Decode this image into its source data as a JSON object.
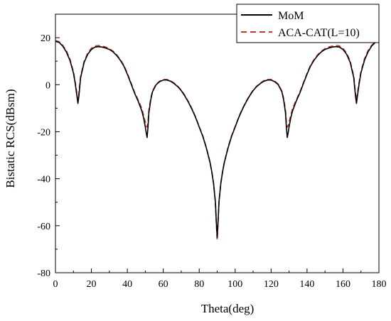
{
  "chart_data": {
    "type": "line",
    "xlabel": "Theta(deg)",
    "ylabel": "Bistatic RCS(dBsm)",
    "xlim": [
      0,
      180
    ],
    "ylim": [
      -80,
      30
    ],
    "xticks": [
      0,
      20,
      40,
      60,
      80,
      100,
      120,
      140,
      160,
      180
    ],
    "yticks": [
      -80,
      -60,
      -40,
      -20,
      0,
      20
    ],
    "grid": false,
    "legend_position": "top-right",
    "series": [
      {
        "name": "MoM",
        "color": "#000000",
        "style": "solid",
        "x": [
          0,
          2,
          4,
          6,
          8,
          10,
          11,
          12,
          12.5,
          13,
          14,
          16,
          18,
          20,
          22,
          24,
          26,
          28,
          30,
          32,
          34,
          36,
          38,
          40,
          42,
          44,
          46,
          48,
          49,
          50,
          50.5,
          51,
          51.5,
          52,
          53,
          54,
          56,
          58,
          60,
          62,
          64,
          66,
          68,
          70,
          72,
          74,
          76,
          78,
          80,
          82,
          84,
          86,
          87,
          88,
          89,
          89.5,
          90,
          90.5,
          91,
          92,
          93,
          94,
          96,
          98,
          100,
          102,
          104,
          106,
          108,
          110,
          112,
          114,
          116,
          118,
          120,
          122,
          124,
          126,
          127,
          128,
          128.5,
          129,
          129.5,
          130,
          131,
          132,
          134,
          136,
          138,
          140,
          142,
          144,
          146,
          148,
          150,
          152,
          154,
          156,
          158,
          160,
          162,
          164,
          166,
          167,
          167.5,
          168,
          169,
          170,
          172,
          174,
          176,
          178,
          180
        ],
        "y": [
          18.5,
          18,
          16.5,
          14,
          10.5,
          5,
          0.5,
          -5,
          -8,
          -5,
          3,
          9.5,
          13,
          15,
          16,
          16.2,
          16,
          15.6,
          15,
          14,
          12.5,
          10.5,
          8,
          4.5,
          0.5,
          -3.5,
          -7,
          -11,
          -14,
          -18,
          -20.5,
          -22.5,
          -18,
          -12,
          -6.5,
          -3,
          0,
          1.3,
          2,
          2,
          1.5,
          0.5,
          -0.8,
          -2.5,
          -4.8,
          -7.5,
          -10.5,
          -14,
          -18,
          -22,
          -27,
          -33,
          -37,
          -42,
          -50,
          -58,
          -65,
          -58,
          -50,
          -42,
          -37,
          -33,
          -27,
          -22,
          -18,
          -14,
          -10.5,
          -7.5,
          -4.8,
          -2.5,
          -0.8,
          0.5,
          1.5,
          2,
          2,
          1.3,
          0,
          -3,
          -6.5,
          -12,
          -18,
          -22.5,
          -20.5,
          -18,
          -14,
          -11,
          -7,
          -3.5,
          0.5,
          4.5,
          8,
          10.5,
          12.5,
          14,
          15,
          15.6,
          16,
          16.2,
          16,
          15,
          13,
          9.5,
          3,
          -5,
          -8,
          -5,
          0.5,
          5,
          10.5,
          14,
          16.5,
          18,
          18.5
        ]
      },
      {
        "name": "ACA-CAT(L=10)",
        "color": "#c0392b",
        "style": "dashed",
        "x": [
          0,
          2,
          4,
          6,
          8,
          10,
          11,
          12,
          12.5,
          13,
          14,
          16,
          18,
          20,
          22,
          24,
          26,
          28,
          30,
          32,
          34,
          36,
          38,
          40,
          42,
          44,
          46,
          48,
          49,
          50,
          50.5,
          51,
          51.5,
          52,
          53,
          54,
          56,
          58,
          60,
          62,
          64,
          66,
          68,
          70,
          72,
          74,
          76,
          78,
          80,
          82,
          84,
          86,
          87,
          88,
          89,
          89.5,
          90,
          90.5,
          91,
          92,
          93,
          94,
          96,
          98,
          100,
          102,
          104,
          106,
          108,
          110,
          112,
          114,
          116,
          118,
          120,
          122,
          124,
          126,
          127,
          128,
          128.5,
          129,
          129.5,
          130,
          131,
          132,
          134,
          136,
          138,
          140,
          142,
          144,
          146,
          148,
          150,
          152,
          154,
          156,
          158,
          160,
          162,
          164,
          166,
          167,
          167.5,
          168,
          169,
          170,
          172,
          174,
          176,
          178,
          180
        ],
        "y": [
          18.8,
          18.3,
          16.8,
          14.5,
          11,
          5.5,
          1,
          -4,
          -6.5,
          -4,
          3.5,
          10,
          13.5,
          15.5,
          16.5,
          16.6,
          16.4,
          16,
          15.3,
          14.3,
          12.8,
          10.8,
          8.3,
          4.8,
          0.8,
          -3.2,
          -6.5,
          -10,
          -13,
          -16,
          -17.5,
          -18,
          -16,
          -11,
          -6,
          -2.8,
          0.2,
          1.5,
          2.2,
          2.2,
          1.7,
          0.7,
          -0.6,
          -2.3,
          -4.6,
          -7.3,
          -10.3,
          -13.8,
          -17.8,
          -21.8,
          -26.8,
          -33,
          -37,
          -42,
          -50,
          -58,
          -66,
          -58,
          -50,
          -42,
          -37,
          -33,
          -26.8,
          -21.8,
          -17.8,
          -13.8,
          -10.3,
          -7.3,
          -4.6,
          -2.3,
          -0.6,
          0.7,
          1.7,
          2.2,
          2.2,
          1.5,
          0.2,
          -2.8,
          -6,
          -11,
          -16,
          -18,
          -17.5,
          -16,
          -13,
          -10,
          -6.5,
          -3.2,
          0.8,
          4.8,
          8.3,
          10.8,
          12.8,
          14.3,
          15.3,
          16,
          16.4,
          16.6,
          16.5,
          15.5,
          13.5,
          10,
          3.5,
          -4,
          -6.5,
          -4,
          1,
          5.5,
          11,
          14.5,
          16.8,
          18.3,
          18.8
        ]
      }
    ]
  }
}
